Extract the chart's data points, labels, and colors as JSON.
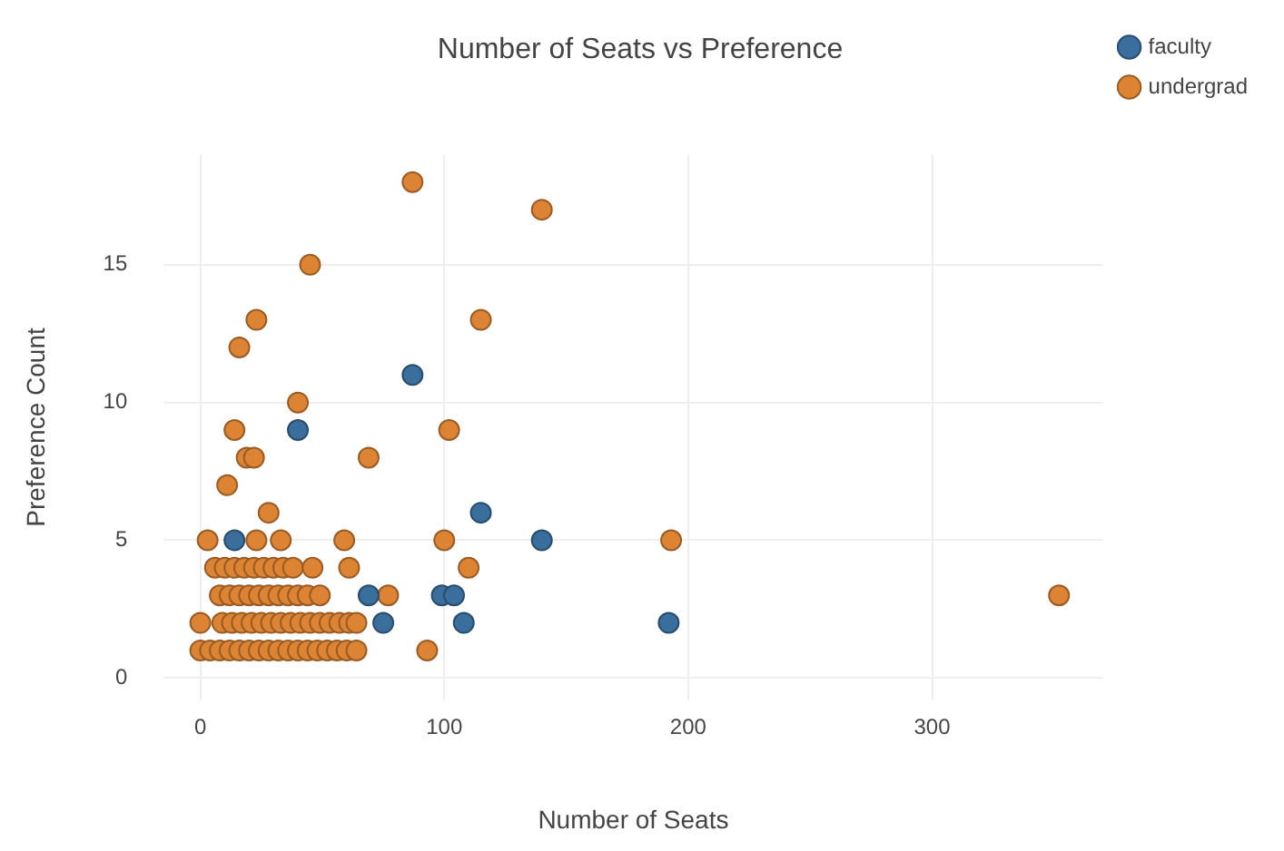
{
  "chart_data": {
    "type": "scatter",
    "title": "Number of Seats vs Preference",
    "xlabel": "Number of Seats",
    "ylabel": "Preference Count",
    "xlim": [
      -15,
      370
    ],
    "ylim": [
      -0.8,
      19
    ],
    "xticks": [
      0,
      100,
      200,
      300
    ],
    "yticks": [
      0,
      5,
      10,
      15
    ],
    "grid": true,
    "legend": "top right",
    "marker": "circle",
    "series": [
      {
        "name": "faculty",
        "color": "#3a6e9c",
        "x": [
          87,
          40,
          115,
          140,
          14,
          99,
          104,
          69,
          75,
          108,
          192
        ],
        "values": [
          11,
          9,
          6,
          5,
          5,
          3,
          3,
          3,
          2,
          2,
          2
        ]
      },
      {
        "name": "undergrad",
        "color": "#dc8434",
        "x": [
          87,
          140,
          45,
          23,
          115,
          16,
          40,
          14,
          102,
          19,
          22,
          69,
          11,
          28,
          3,
          23,
          33,
          59,
          100,
          193,
          6,
          10,
          14,
          18,
          22,
          26,
          30,
          34,
          38,
          46,
          61,
          110,
          8,
          12,
          16,
          20,
          24,
          28,
          32,
          36,
          40,
          44,
          49,
          77,
          352,
          0,
          9,
          13,
          17,
          21,
          25,
          29,
          33,
          37,
          41,
          45,
          49,
          53,
          57,
          61,
          64,
          0,
          4,
          8,
          12,
          16,
          20,
          24,
          28,
          32,
          36,
          40,
          44,
          48,
          52,
          56,
          60,
          64,
          93
        ],
        "values": [
          18,
          17,
          15,
          13,
          13,
          12,
          10,
          9,
          9,
          8,
          8,
          8,
          7,
          6,
          5,
          5,
          5,
          5,
          5,
          5,
          4,
          4,
          4,
          4,
          4,
          4,
          4,
          4,
          4,
          4,
          4,
          4,
          3,
          3,
          3,
          3,
          3,
          3,
          3,
          3,
          3,
          3,
          3,
          3,
          3,
          2,
          2,
          2,
          2,
          2,
          2,
          2,
          2,
          2,
          2,
          2,
          2,
          2,
          2,
          2,
          2,
          1,
          1,
          1,
          1,
          1,
          1,
          1,
          1,
          1,
          1,
          1,
          1,
          1,
          1,
          1,
          1,
          1,
          1
        ]
      }
    ]
  }
}
